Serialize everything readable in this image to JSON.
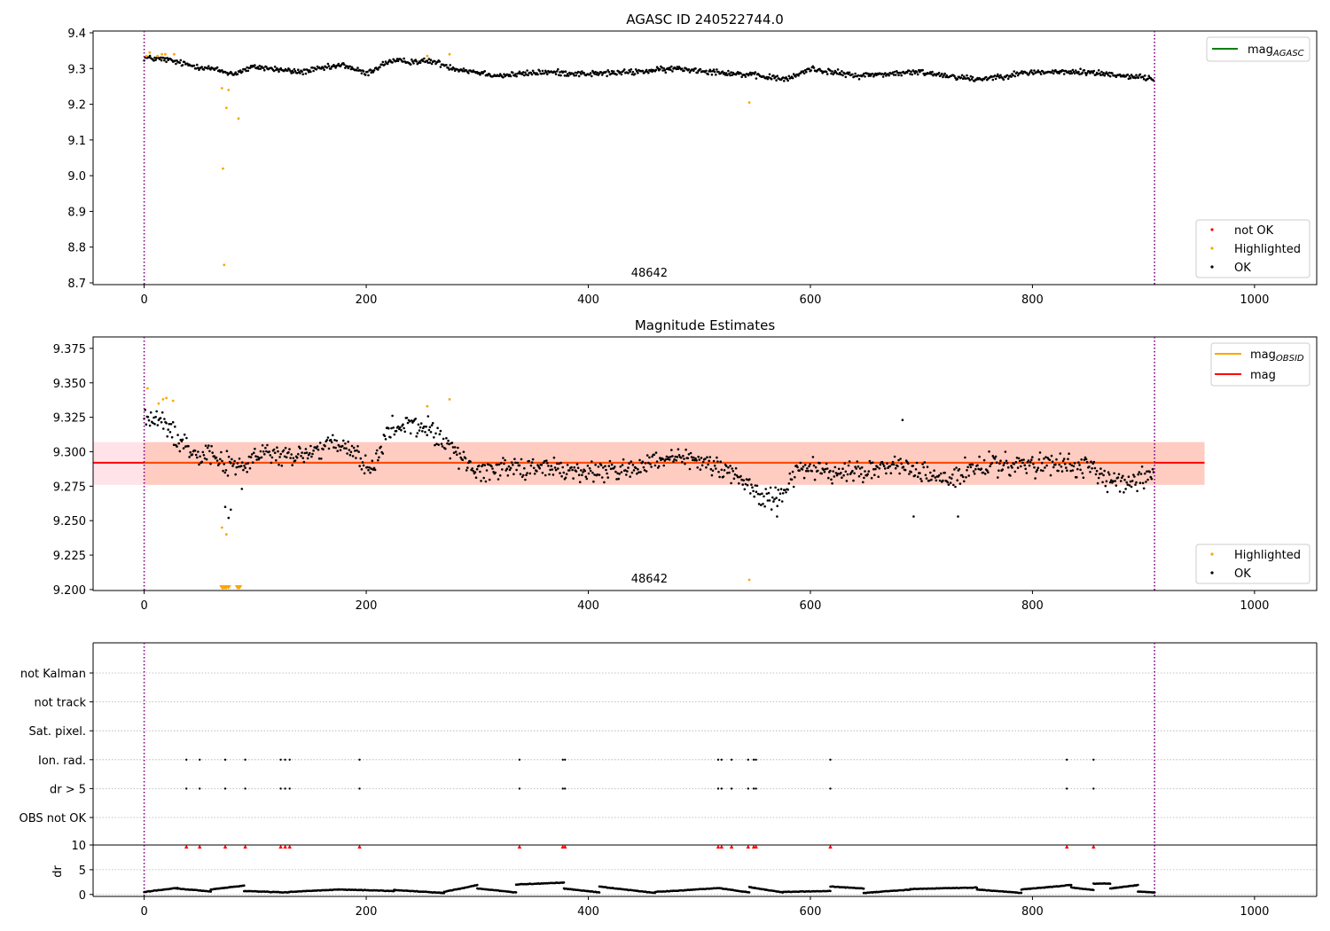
{
  "chart_data": [
    {
      "type": "scatter",
      "title": "AGASC ID 240522744.0",
      "xlim": [
        -46,
        1056
      ],
      "ylim": [
        8.695,
        9.405
      ],
      "xticks": [
        0,
        200,
        400,
        600,
        800,
        1000
      ],
      "yticks": [
        8.7,
        8.8,
        8.9,
        9.0,
        9.1,
        9.2,
        9.3,
        9.4
      ],
      "ytick_labels": [
        "8.7",
        "8.8",
        "8.9",
        "9.0",
        "9.1",
        "9.2",
        "9.3",
        "9.4"
      ],
      "obsid_label": "48642",
      "obsid_label_x": 455,
      "vlines_x": [
        0,
        910
      ],
      "mag_agasc": 9.29,
      "mag_agasc_segment": [
        0,
        910
      ],
      "legend_top": [
        {
          "label": "mag",
          "sub": "AGASC",
          "color": "#008000"
        }
      ],
      "legend_bottom": [
        {
          "label": "not OK",
          "color": "#ff0000"
        },
        {
          "label": "Highlighted",
          "color": "#ffa500"
        },
        {
          "label": "OK",
          "color": "#000000"
        }
      ],
      "ok_trend": {
        "x": [
          0,
          20,
          40,
          60,
          80,
          100,
          140,
          180,
          200,
          220,
          260,
          280,
          320,
          360,
          400,
          440,
          480,
          520,
          550,
          580,
          600,
          640,
          700,
          750,
          800,
          850,
          900,
          910
        ],
        "y": [
          9.33,
          9.325,
          9.31,
          9.3,
          9.285,
          9.305,
          9.29,
          9.31,
          9.285,
          9.32,
          9.32,
          9.3,
          9.28,
          9.29,
          9.285,
          9.29,
          9.3,
          9.29,
          9.28,
          9.27,
          9.3,
          9.28,
          9.29,
          9.27,
          9.29,
          9.29,
          9.275,
          9.27
        ]
      },
      "highlighted_points": [
        {
          "x": 2,
          "y": 9.335
        },
        {
          "x": 5,
          "y": 9.345
        },
        {
          "x": 12,
          "y": 9.335
        },
        {
          "x": 16,
          "y": 9.34
        },
        {
          "x": 19,
          "y": 9.34
        },
        {
          "x": 27,
          "y": 9.34
        },
        {
          "x": 70,
          "y": 9.245
        },
        {
          "x": 71,
          "y": 9.02
        },
        {
          "x": 72,
          "y": 8.75
        },
        {
          "x": 74,
          "y": 9.19
        },
        {
          "x": 76,
          "y": 9.24
        },
        {
          "x": 85,
          "y": 9.16
        },
        {
          "x": 255,
          "y": 9.335
        },
        {
          "x": 275,
          "y": 9.34
        },
        {
          "x": 545,
          "y": 9.205
        }
      ]
    },
    {
      "type": "scatter",
      "title": "Magnitude Estimates",
      "xlim": [
        -46,
        1056
      ],
      "ylim": [
        9.1993,
        9.3833
      ],
      "xticks": [
        0,
        200,
        400,
        600,
        800,
        1000
      ],
      "yticks": [
        9.2,
        9.225,
        9.25,
        9.275,
        9.3,
        9.325,
        9.35,
        9.375
      ],
      "ytick_labels": [
        "9.200",
        "9.225",
        "9.250",
        "9.275",
        "9.300",
        "9.325",
        "9.350",
        "9.375"
      ],
      "obsid_label": "48642",
      "obsid_label_x": 455,
      "vlines_x": [
        0,
        910
      ],
      "mag": 9.292,
      "mag_band": {
        "low": 9.276,
        "high": 9.307,
        "x0": -46,
        "x1": 955
      },
      "mag_obsid_band": {
        "low": 9.276,
        "high": 9.307,
        "x0": 0,
        "x1": 955
      },
      "legend_top": [
        {
          "label": "mag",
          "sub": "OBSID",
          "color": "#ffa500"
        },
        {
          "label": "mag",
          "sub": "",
          "color": "#ff0000"
        }
      ],
      "legend_bottom": [
        {
          "label": "Highlighted",
          "color": "#ffa500"
        },
        {
          "label": "OK",
          "color": "#000000"
        }
      ],
      "ok_trend": {
        "x": [
          0,
          15,
          30,
          45,
          60,
          75,
          90,
          110,
          130,
          150,
          170,
          190,
          205,
          220,
          240,
          260,
          280,
          300,
          330,
          360,
          400,
          440,
          480,
          520,
          545,
          560,
          575,
          590,
          610,
          640,
          680,
          720,
          760,
          800,
          840,
          870,
          900,
          910
        ],
        "y": [
          9.325,
          9.322,
          9.31,
          9.3,
          9.3,
          9.29,
          9.29,
          9.3,
          9.295,
          9.3,
          9.305,
          9.3,
          9.285,
          9.315,
          9.32,
          9.315,
          9.3,
          9.285,
          9.29,
          9.288,
          9.285,
          9.288,
          9.295,
          9.29,
          9.275,
          9.265,
          9.27,
          9.29,
          9.285,
          9.285,
          9.29,
          9.28,
          9.29,
          9.29,
          9.29,
          9.28,
          9.28,
          9.285
        ]
      },
      "ok_outliers": [
        {
          "x": 73,
          "y": 9.26
        },
        {
          "x": 76,
          "y": 9.252
        },
        {
          "x": 78,
          "y": 9.258
        },
        {
          "x": 88,
          "y": 9.273
        },
        {
          "x": 570,
          "y": 9.253
        },
        {
          "x": 683,
          "y": 9.323
        },
        {
          "x": 693,
          "y": 9.253
        },
        {
          "x": 733,
          "y": 9.253
        }
      ],
      "highlighted_points": [
        {
          "x": 3,
          "y": 9.346
        },
        {
          "x": 13,
          "y": 9.335
        },
        {
          "x": 17,
          "y": 9.338
        },
        {
          "x": 20,
          "y": 9.339
        },
        {
          "x": 26,
          "y": 9.337
        },
        {
          "x": 70,
          "y": 9.245
        },
        {
          "x": 74,
          "y": 9.24
        },
        {
          "x": 255,
          "y": 9.333
        },
        {
          "x": 275,
          "y": 9.338
        },
        {
          "x": 545,
          "y": 9.207
        }
      ],
      "highlighted_below_range_x": [
        70,
        71,
        72,
        73,
        74,
        76,
        84,
        85,
        86
      ]
    },
    {
      "type": "scatter",
      "title": "",
      "xlim": [
        -46,
        1056
      ],
      "categories": [
        "not Kalman",
        "not track",
        "Sat. pixel.",
        "Ion. rad.",
        "dr > 5",
        "OBS not OK"
      ],
      "vlines_x": [
        0,
        910
      ],
      "flag_x": [
        38,
        50,
        73,
        91,
        123,
        127,
        131,
        194,
        338,
        377,
        379,
        517,
        520,
        529,
        544,
        549,
        551,
        618,
        831,
        855
      ],
      "flag_rows": [
        "Ion. rad.",
        "dr > 5"
      ]
    },
    {
      "type": "line",
      "title": "",
      "ylabel": "dr",
      "xlim": [
        -46,
        1056
      ],
      "ylim": [
        -0.4,
        10
      ],
      "xticks": [
        0,
        200,
        400,
        600,
        800,
        1000
      ],
      "yticks": [
        0,
        5,
        10
      ],
      "vlines_x": [
        0,
        910
      ],
      "flag_x": [
        38,
        50,
        73,
        91,
        123,
        127,
        131,
        194,
        338,
        377,
        379,
        517,
        520,
        529,
        544,
        549,
        551,
        618,
        831,
        855
      ],
      "flag_value": 10,
      "segments": [
        {
          "x0": 0,
          "x1": 30,
          "y0": 0.5,
          "y1": 1.3
        },
        {
          "x0": 30,
          "x1": 60,
          "y0": 1.2,
          "y1": 0.6
        },
        {
          "x0": 60,
          "x1": 90,
          "y0": 1.0,
          "y1": 1.8
        },
        {
          "x0": 90,
          "x1": 130,
          "y0": 0.7,
          "y1": 0.4
        },
        {
          "x0": 130,
          "x1": 175,
          "y0": 0.5,
          "y1": 1.0
        },
        {
          "x0": 175,
          "x1": 225,
          "y0": 1.0,
          "y1": 0.7
        },
        {
          "x0": 225,
          "x1": 270,
          "y0": 0.9,
          "y1": 0.3
        },
        {
          "x0": 270,
          "x1": 300,
          "y0": 0.5,
          "y1": 1.9
        },
        {
          "x0": 300,
          "x1": 335,
          "y0": 1.2,
          "y1": 0.4
        },
        {
          "x0": 335,
          "x1": 378,
          "y0": 2.0,
          "y1": 2.4
        },
        {
          "x0": 378,
          "x1": 410,
          "y0": 1.2,
          "y1": 0.4
        },
        {
          "x0": 410,
          "x1": 460,
          "y0": 1.6,
          "y1": 0.3
        },
        {
          "x0": 460,
          "x1": 520,
          "y0": 0.5,
          "y1": 1.3
        },
        {
          "x0": 520,
          "x1": 545,
          "y0": 1.2,
          "y1": 0.4
        },
        {
          "x0": 545,
          "x1": 575,
          "y0": 1.5,
          "y1": 0.4
        },
        {
          "x0": 575,
          "x1": 618,
          "y0": 0.5,
          "y1": 0.7
        },
        {
          "x0": 618,
          "x1": 648,
          "y0": 1.6,
          "y1": 1.2
        },
        {
          "x0": 648,
          "x1": 690,
          "y0": 0.3,
          "y1": 1.0
        },
        {
          "x0": 690,
          "x1": 750,
          "y0": 1.1,
          "y1": 1.4
        },
        {
          "x0": 750,
          "x1": 790,
          "y0": 1.0,
          "y1": 0.3
        },
        {
          "x0": 790,
          "x1": 835,
          "y0": 1.0,
          "y1": 1.9
        },
        {
          "x0": 835,
          "x1": 855,
          "y0": 1.4,
          "y1": 0.9
        },
        {
          "x0": 855,
          "x1": 870,
          "y0": 2.2,
          "y1": 2.2
        },
        {
          "x0": 870,
          "x1": 895,
          "y0": 1.2,
          "y1": 1.9
        },
        {
          "x0": 895,
          "x1": 910,
          "y0": 0.6,
          "y1": 0.4
        }
      ]
    }
  ]
}
